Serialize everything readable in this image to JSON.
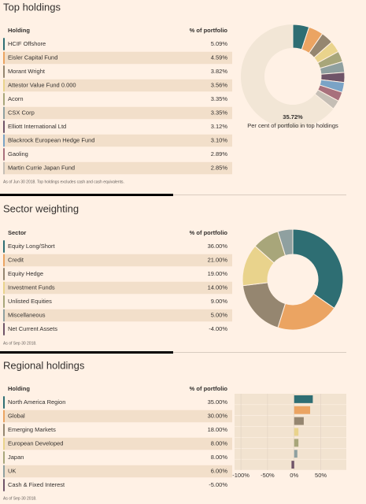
{
  "top_holdings": {
    "title": "Top holdings",
    "header": [
      "Holding",
      "% of portfolio"
    ],
    "note": "As of Jun 30 2018. Top holdings excludes cash and cash equivalents."
  },
  "sector_weighting": {
    "title": "Sector weighting",
    "header": [
      "Sector",
      "% of portfolio"
    ],
    "note": "As of Sep 30 2018."
  },
  "regional_holdings": {
    "title": "Regional holdings",
    "header": [
      "Holding",
      "% of portfolio"
    ],
    "note": "As of Sep 30 2018."
  },
  "chart_data": [
    {
      "type": "donut",
      "categories": [
        "HCIF Offshore",
        "Eisler Capital Fund",
        "Morant Wright",
        "Attestor Value Fund 0.000",
        "Acorn",
        "CSX Corp",
        "Elliott International Ltd",
        "Blackrock European Hedge Fund",
        "Gaoling",
        "Martin Currie Japan Fund"
      ],
      "values": [
        5.09,
        4.59,
        3.82,
        3.56,
        3.35,
        3.35,
        3.12,
        3.1,
        2.89,
        2.85
      ],
      "value_labels": [
        "5.09%",
        "4.59%",
        "3.82%",
        "3.56%",
        "3.35%",
        "3.35%",
        "3.12%",
        "3.10%",
        "2.89%",
        "2.85%"
      ],
      "colors": [
        "#2e6e73",
        "#eba462",
        "#958670",
        "#e9d38c",
        "#a8a67a",
        "#8fa0a0",
        "#6f5468",
        "#7aa3c6",
        "#a8707c",
        "#c5beb5"
      ],
      "center_label": "35.72%",
      "subtitle": "Per cent of portfolio in top holdings"
    },
    {
      "type": "donut",
      "categories": [
        "Equity Long/Short",
        "Credit",
        "Equity Hedge",
        "Investment Funds",
        "Unlisted Equities",
        "Miscellaneous",
        "Net Current Assets"
      ],
      "values": [
        36.0,
        21.0,
        19.0,
        14.0,
        9.0,
        5.0,
        -4.0
      ],
      "value_labels": [
        "36.00%",
        "21.00%",
        "19.00%",
        "14.00%",
        "9.00%",
        "5.00%",
        "-4.00%"
      ],
      "colors": [
        "#2e6e73",
        "#eba462",
        "#958670",
        "#e9d38c",
        "#a8a67a",
        "#8fa0a0",
        "#6f5468"
      ]
    },
    {
      "type": "hbar",
      "categories": [
        "North America Region",
        "Global",
        "Emerging Markets",
        "European Developed",
        "Japan",
        "UK",
        "Cash & Fixed Interest"
      ],
      "values": [
        35.0,
        30.0,
        18.0,
        8.0,
        8.0,
        6.0,
        -5.0
      ],
      "value_labels": [
        "35.00%",
        "30.00%",
        "18.00%",
        "8.00%",
        "8.00%",
        "6.00%",
        "-5.00%"
      ],
      "colors": [
        "#2e6e73",
        "#eba462",
        "#958670",
        "#e9d38c",
        "#a8a67a",
        "#8fa0a0",
        "#6f5468"
      ],
      "xlim": [
        -112,
        98
      ],
      "xticks": [
        {
          "value": -100,
          "label": "-100%"
        },
        {
          "value": -50,
          "label": "-50%"
        },
        {
          "value": 0,
          "label": "0%"
        },
        {
          "value": 50,
          "label": "50%"
        }
      ],
      "grid": true
    }
  ]
}
